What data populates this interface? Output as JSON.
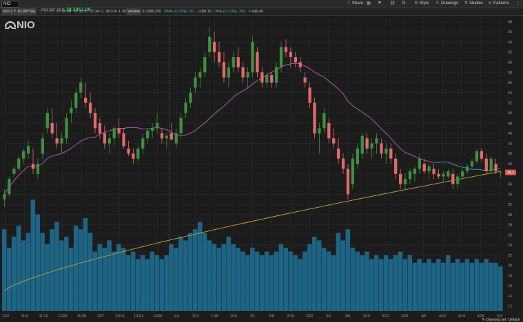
{
  "toolbar": {
    "symbol": "NIO",
    "share": "Share",
    "style": "Style",
    "drawings": "Drawings",
    "studies": "Studies",
    "patterns": "Patterns",
    "d_label": "D"
  },
  "info": {
    "title": "NIO 1 Y 1D [NYSE]",
    "o": "O: 38.34",
    "h": "H: 38.7",
    "l": "L: 37.34",
    "c": "C: 38.3",
    "r": "R: 1.36",
    "volume_label": "Volume",
    "volume_value": "31,888,230",
    "dma50_label": "DMA (CLOSE, 50, -14)",
    "dma50_value": "39.19",
    "dma200_label": "DMA (CLOSE, 200, -14)",
    "dma200_value": "38.49",
    "date": "D: 5/5/21",
    "name": "NIO INC ADR",
    "last": "38.305",
    "change": "1.00"
  },
  "logo_text": "NIO",
  "footer": "Drawing set: Default",
  "colors": {
    "up": "#3f8f3f",
    "down": "#e36a6a",
    "volume": "#1e6484",
    "dma50": "#c45cc0",
    "dma50_recent": "#3fa5b5",
    "dma200": "#bfa43c",
    "price_tag": "#e34f4f"
  },
  "chart_data": {
    "type": "candlestick",
    "ylim": [
      11,
      69
    ],
    "y_ticks": [
      12,
      14,
      16,
      18,
      20,
      22,
      24,
      26,
      28,
      30,
      32,
      34,
      36,
      38,
      40,
      42,
      44,
      46,
      48,
      50,
      52,
      54,
      56,
      58,
      60,
      62,
      64,
      66,
      68
    ],
    "x_ticks": [
      "11/2",
      "11/9",
      "11/16",
      "11/23",
      "11/30",
      "12/7",
      "12/14",
      "12/21",
      "12/28",
      "1/4",
      "1/11",
      "1/18",
      "1/25",
      "2/1",
      "2/8",
      "2/15",
      "2/22",
      "3/1",
      "3/8",
      "3/15",
      "3/22",
      "3/29",
      "4/5",
      "4/12",
      "4/19",
      "4/26",
      "5/3"
    ],
    "last_price_label": "38.3",
    "ohlc": [
      [
        33,
        35,
        31.5,
        34
      ],
      [
        34,
        37.5,
        33.5,
        37
      ],
      [
        38,
        39.5,
        37.5,
        39
      ],
      [
        39,
        41.5,
        38.5,
        41
      ],
      [
        41,
        43,
        40,
        42.5
      ],
      [
        42,
        44.5,
        41,
        43.5
      ],
      [
        40,
        43,
        38,
        39
      ],
      [
        38,
        41,
        37,
        40
      ],
      [
        42,
        46,
        41,
        45
      ],
      [
        47,
        51,
        46,
        50
      ],
      [
        48,
        51,
        45,
        46
      ],
      [
        45,
        48,
        43,
        44
      ],
      [
        44,
        46,
        42,
        45
      ],
      [
        45,
        50,
        44,
        49
      ],
      [
        50,
        52.5,
        48,
        51
      ],
      [
        51,
        55,
        50,
        54
      ],
      [
        54,
        57,
        53,
        56
      ],
      [
        53,
        56,
        51,
        52
      ],
      [
        52,
        54,
        49,
        50
      ],
      [
        50,
        51,
        46,
        47
      ],
      [
        48,
        49,
        45,
        46
      ],
      [
        46,
        47.5,
        43,
        44
      ],
      [
        44,
        46,
        42,
        45
      ],
      [
        45,
        47.5,
        43.5,
        47
      ],
      [
        47,
        49,
        45,
        46
      ],
      [
        46,
        47,
        43,
        43.5
      ],
      [
        43,
        44.5,
        41.5,
        42
      ],
      [
        42,
        43,
        40,
        41
      ],
      [
        41,
        43.5,
        40.5,
        43
      ],
      [
        43,
        46,
        42,
        45
      ],
      [
        45,
        47,
        44,
        46.5
      ],
      [
        46.5,
        48,
        45,
        47
      ],
      [
        47,
        50,
        46,
        48
      ],
      [
        46,
        47,
        44,
        45
      ],
      [
        45,
        46,
        43,
        45.5
      ],
      [
        46,
        48,
        44.5,
        44.8
      ],
      [
        44,
        47,
        43,
        46
      ],
      [
        46,
        50,
        45,
        49
      ],
      [
        50,
        53,
        49,
        52
      ],
      [
        52,
        55,
        51,
        54
      ],
      [
        55,
        58,
        54,
        57
      ],
      [
        57,
        59,
        55,
        58
      ],
      [
        58,
        62,
        57,
        61
      ],
      [
        62,
        67,
        61,
        65
      ],
      [
        64,
        66,
        60,
        62
      ],
      [
        62,
        64,
        59,
        60
      ],
      [
        60,
        62,
        56,
        57
      ],
      [
        57,
        60,
        55,
        59
      ],
      [
        59,
        62,
        58,
        61
      ],
      [
        61,
        63,
        58,
        59
      ],
      [
        59,
        60,
        56,
        57
      ],
      [
        57,
        59,
        55,
        58
      ],
      [
        58,
        65,
        57,
        64
      ],
      [
        62,
        63,
        57,
        58
      ],
      [
        58,
        59,
        55,
        56
      ],
      [
        56,
        58,
        55,
        57.5
      ],
      [
        57.5,
        58,
        55,
        56
      ],
      [
        56,
        60,
        55,
        59
      ],
      [
        59,
        64,
        58,
        63
      ],
      [
        63,
        64.5,
        61,
        62
      ],
      [
        62,
        63,
        59,
        61
      ],
      [
        61,
        62,
        59,
        60
      ],
      [
        60,
        61,
        58,
        59
      ],
      [
        57,
        58,
        55,
        56
      ],
      [
        55,
        56,
        51,
        52
      ],
      [
        52,
        53,
        45,
        46
      ],
      [
        46,
        48,
        42,
        47
      ],
      [
        47,
        51,
        46,
        50
      ],
      [
        48,
        49,
        44,
        45
      ],
      [
        45,
        47,
        43,
        44
      ],
      [
        43,
        45,
        40,
        41
      ],
      [
        41,
        42,
        38,
        39
      ],
      [
        39,
        40,
        33,
        34
      ],
      [
        36,
        42,
        35,
        41
      ],
      [
        40,
        44,
        39,
        43
      ],
      [
        42,
        46,
        41,
        45.5
      ],
      [
        45,
        46,
        42,
        43
      ],
      [
        43,
        45,
        41,
        44
      ],
      [
        44,
        46,
        42,
        45
      ],
      [
        44,
        45,
        41,
        42
      ],
      [
        42,
        44,
        40,
        43
      ],
      [
        43,
        44,
        40,
        41
      ],
      [
        41,
        42,
        37,
        38
      ],
      [
        38,
        39,
        35,
        36
      ],
      [
        36,
        38,
        35,
        37
      ],
      [
        37,
        39,
        36,
        38.5
      ],
      [
        38,
        39.5,
        36.5,
        39
      ],
      [
        39,
        42,
        38,
        41
      ],
      [
        40,
        41,
        38,
        38.5
      ],
      [
        38.5,
        40,
        37,
        39.5
      ],
      [
        39,
        40,
        37,
        38
      ],
      [
        38,
        39,
        37,
        37.5
      ],
      [
        37.5,
        38.5,
        36.5,
        38
      ],
      [
        37.5,
        39,
        37,
        38.5
      ],
      [
        38,
        39,
        35,
        36
      ],
      [
        36,
        38,
        35,
        37.5
      ],
      [
        37.5,
        39,
        37,
        38.5
      ],
      [
        38.5,
        40,
        38,
        39.5
      ],
      [
        39.5,
        41,
        39,
        40.5
      ],
      [
        40.5,
        43,
        40,
        42.5
      ],
      [
        42.5,
        43,
        40.5,
        41
      ],
      [
        41,
        42,
        38,
        38.5
      ],
      [
        38.5,
        41.5,
        38,
        41
      ],
      [
        40,
        41,
        38,
        38.5
      ],
      [
        38.3,
        38.7,
        37.3,
        38.3
      ]
    ],
    "volume": [
      22,
      17,
      20,
      23,
      19,
      21,
      30,
      26,
      21,
      18,
      22,
      24,
      19,
      20,
      17,
      23,
      22,
      25,
      21,
      16,
      18,
      17,
      19,
      16,
      18,
      17,
      15,
      16,
      14,
      15,
      14,
      16,
      15,
      14,
      15,
      18,
      17,
      20,
      19,
      21,
      22,
      24,
      21,
      19,
      18,
      17,
      18,
      20,
      18,
      17,
      16,
      15,
      17,
      16,
      15,
      16,
      15,
      16,
      18,
      17,
      16,
      15,
      14,
      16,
      18,
      20,
      19,
      17,
      16,
      15,
      21,
      19,
      22,
      17,
      16,
      15,
      16,
      14,
      15,
      14,
      15,
      14,
      15,
      16,
      14,
      15,
      13,
      14,
      13,
      14,
      13,
      14,
      13,
      15,
      13,
      14,
      13,
      14,
      13,
      14,
      13,
      14,
      13,
      13,
      12
    ],
    "volume_ylim": [
      0,
      40
    ]
  }
}
